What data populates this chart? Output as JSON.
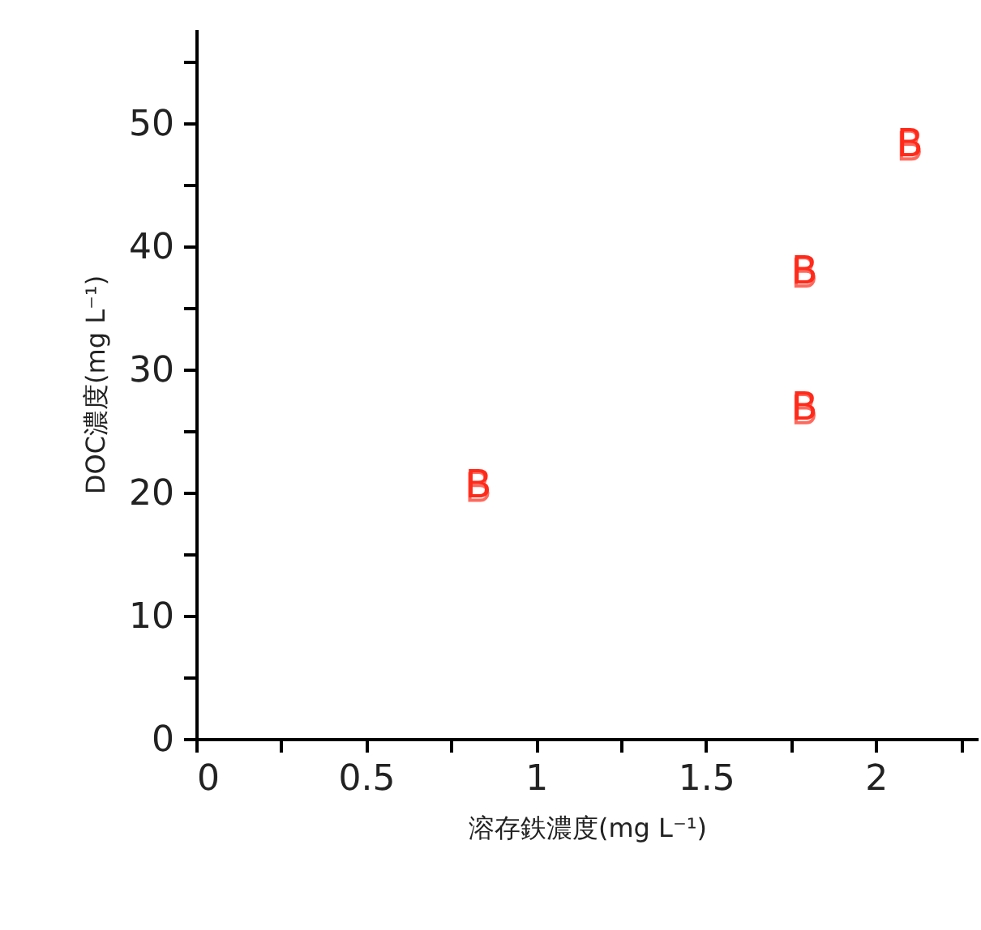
{
  "chart_data": {
    "type": "scatter",
    "xlabel": "溶存鉄濃度(mg L⁻¹)",
    "ylabel": "DOC濃度(mg L⁻¹)",
    "xlim": [
      0,
      2.3
    ],
    "ylim": [
      0,
      57.6
    ],
    "xticks": [
      0,
      {
        "value": 0.25,
        "label": null
      },
      0.5,
      {
        "value": 0.75,
        "label": null
      },
      1,
      {
        "value": 1.25,
        "label": null
      },
      1.5,
      {
        "value": 1.75,
        "label": null
      },
      2,
      {
        "value": 2.25,
        "label": null
      }
    ],
    "yticks": [
      0,
      {
        "value": 5,
        "label": null
      },
      10,
      {
        "value": 15,
        "label": null
      },
      20,
      {
        "value": 25,
        "label": null
      },
      30,
      {
        "value": 35,
        "label": null
      },
      40,
      {
        "value": 45,
        "label": null
      },
      50,
      {
        "value": 55,
        "label": null
      }
    ],
    "x": [
      0.83,
      1.79,
      1.79,
      2.1
    ],
    "series": [
      {
        "name": "B",
        "color": "#ff2a1a",
        "values": [
          20.5,
          26.8,
          37.9,
          48.2
        ]
      }
    ]
  }
}
